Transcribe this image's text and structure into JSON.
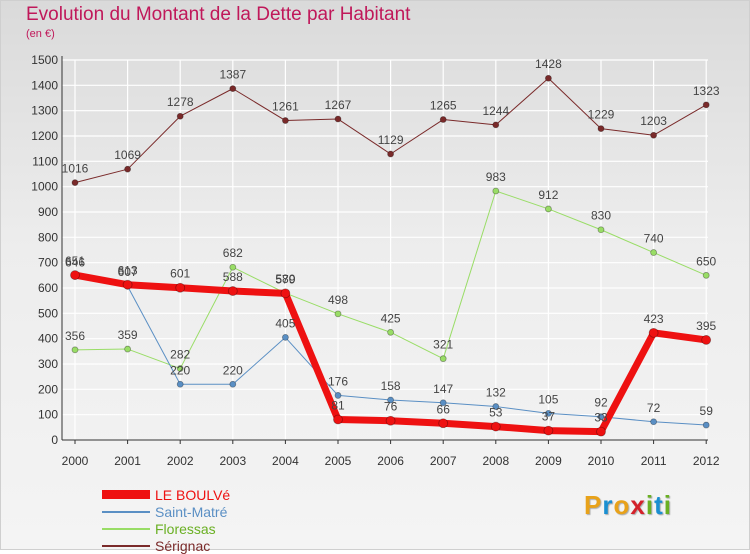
{
  "header": {
    "title": "Evolution du Montant de la Dette par Habitant",
    "subtitle": "(en €)"
  },
  "colors": {
    "title": "#c0185a",
    "axis": "#333333",
    "grid": "#ffffff"
  },
  "logo": {
    "letters": [
      "P",
      "r",
      "o",
      "x",
      "i",
      "t",
      "i"
    ],
    "colors": [
      "#e8a21a",
      "#1a8fd1",
      "#e8a21a",
      "#d4212a",
      "#6ab023",
      "#1a8fd1",
      "#6ab023"
    ]
  },
  "chart_data": {
    "type": "line",
    "title": "Evolution du Montant de la Dette par Habitant",
    "subtitle": "(en €)",
    "xlabel": "",
    "ylabel": "",
    "ylim": [
      0,
      1500
    ],
    "yticks": [
      "0",
      "100",
      "200",
      "300",
      "400",
      "500",
      "600",
      "700",
      "800",
      "900",
      "1000",
      "1100",
      "1200",
      "1300",
      "1400",
      "1500"
    ],
    "categories": [
      "2000",
      "2001",
      "2002",
      "2003",
      "2004",
      "2005",
      "2006",
      "2007",
      "2008",
      "2009",
      "2010",
      "2011",
      "2012"
    ],
    "grid": true,
    "legend_position": "bottom-left",
    "series": [
      {
        "name": "Sérignac",
        "color": "#7a2a2a",
        "width": 1,
        "values": [
          1016,
          1069,
          1278,
          1387,
          1261,
          1267,
          1129,
          1265,
          1244,
          1428,
          1229,
          1203,
          1323
        ]
      },
      {
        "name": "Floressas",
        "color": "#99dd66",
        "width": 1,
        "values": [
          356,
          359,
          282,
          682,
          580,
          498,
          425,
          321,
          983,
          912,
          830,
          740,
          650
        ]
      },
      {
        "name": "Saint-Matré",
        "color": "#5a8fc4",
        "width": 1,
        "values": [
          646,
          607,
          220,
          220,
          405,
          176,
          158,
          147,
          132,
          105,
          92,
          72,
          59
        ]
      },
      {
        "name": "LE BOULVé",
        "color": "#ee1111",
        "width": 7,
        "values": [
          651,
          613,
          601,
          588,
          579,
          81,
          76,
          66,
          53,
          37,
          33,
          423,
          395
        ]
      }
    ]
  }
}
